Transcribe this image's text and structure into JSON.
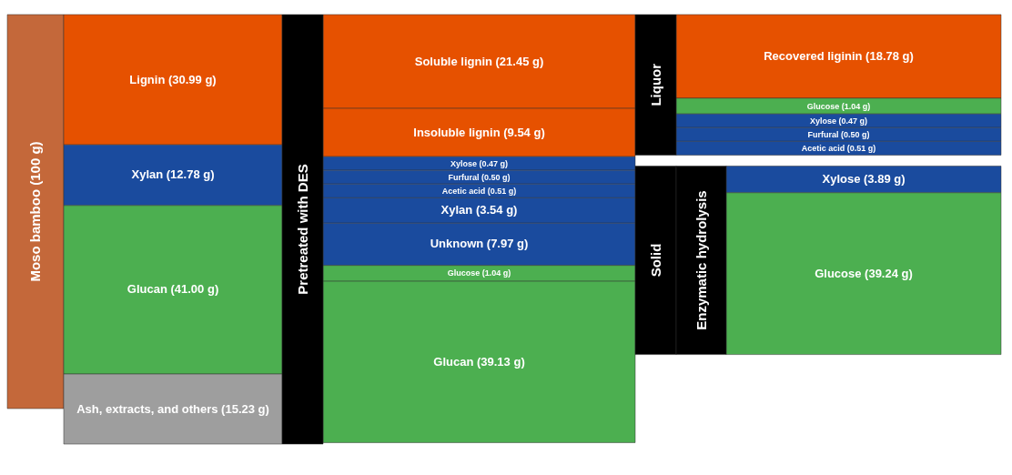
{
  "chart_data": {
    "type": "other",
    "categories": [
      "Moso bamboo",
      "Lignin",
      "Xylan",
      "Glucan",
      "Ash, extracts, and others",
      "Soluble lignin",
      "Insoluble lignin",
      "Xylose",
      "Furfural",
      "Acetic acid",
      "Xylan",
      "Unknown",
      "Glucose",
      "Glucan",
      "Recovered liginin",
      "Glucose",
      "Xylose",
      "Furfural",
      "Acetic acid",
      "Xylose",
      "Glucose"
    ],
    "series": [
      {
        "values": [
          100,
          null,
          null,
          null,
          null,
          null,
          null,
          null,
          null,
          null,
          null,
          null,
          null,
          null,
          null,
          null,
          null,
          null,
          null,
          null,
          null
        ],
        "value_labels": [
          "(100 g)",
          null,
          null,
          null,
          null,
          null,
          null,
          null,
          null,
          null,
          null,
          null,
          null,
          null,
          null,
          null,
          null,
          null,
          null,
          null,
          null
        ],
        "colors": [
          "#c4683a",
          null,
          null,
          null,
          null,
          null,
          null,
          null,
          null,
          null,
          null,
          null,
          null,
          null,
          null,
          null,
          null,
          null,
          null,
          null,
          null
        ]
      },
      {
        "values": [
          null,
          30.99,
          12.78,
          41.0,
          15.23,
          null,
          null,
          null,
          null,
          null,
          null,
          null,
          null,
          null,
          null,
          null,
          null,
          null,
          null,
          null,
          null
        ],
        "value_labels": [
          null,
          "(30.99 g)",
          "(12.78 g)",
          "(41.00 g)",
          "(15.23 g)",
          null,
          null,
          null,
          null,
          null,
          null,
          null,
          null,
          null,
          null,
          null,
          null,
          null,
          null,
          null,
          null
        ],
        "colors": [
          null,
          "#e65100",
          "#1a4b9e",
          "#4caf50",
          "#9e9e9e",
          null,
          null,
          null,
          null,
          null,
          null,
          null,
          null,
          null,
          null,
          null,
          null,
          null,
          null,
          null,
          null
        ]
      },
      {
        "values": [
          null,
          null,
          null,
          null,
          null,
          21.45,
          9.54,
          0.47,
          0.5,
          0.51,
          3.54,
          7.97,
          1.04,
          39.13,
          null,
          null,
          null,
          null,
          null,
          null,
          null
        ],
        "value_labels": [
          null,
          null,
          null,
          null,
          null,
          "(21.45 g)",
          "(9.54 g)",
          "(0.47 g)",
          "(0.50 g)",
          "(0.51 g)",
          "(3.54 g)",
          "(7.97 g)",
          "(1.04 g)",
          "(39.13 g)",
          null,
          null,
          null,
          null,
          null,
          null,
          null
        ],
        "colors": [
          null,
          null,
          null,
          null,
          null,
          "#e65100",
          "#e65100",
          "#1a4b9e",
          "#1a4b9e",
          "#1a4b9e",
          "#1a4b9e",
          "#1a4b9e",
          "#4caf50",
          "#4caf50",
          null,
          null,
          null,
          null,
          null,
          null,
          null
        ]
      },
      {
        "values": [
          null,
          null,
          null,
          null,
          null,
          null,
          null,
          null,
          null,
          null,
          null,
          null,
          null,
          null,
          18.78,
          1.04,
          0.47,
          0.5,
          0.51,
          null,
          null
        ],
        "value_labels": [
          null,
          null,
          null,
          null,
          null,
          null,
          null,
          null,
          null,
          null,
          null,
          null,
          null,
          null,
          "(18.78 g)",
          "(1.04 g)",
          "(0.47 g)",
          "(0.50 g)",
          "(0.51 g)",
          null,
          null
        ],
        "colors": [
          null,
          null,
          null,
          null,
          null,
          null,
          null,
          null,
          null,
          null,
          null,
          null,
          null,
          null,
          "#e65100",
          "#4caf50",
          "#1a4b9e",
          "#1a4b9e",
          "#1a4b9e",
          null,
          null
        ]
      },
      {
        "values": [
          null,
          null,
          null,
          null,
          null,
          null,
          null,
          null,
          null,
          null,
          null,
          null,
          null,
          null,
          null,
          null,
          null,
          null,
          null,
          3.89,
          39.24
        ],
        "value_labels": [
          null,
          null,
          null,
          null,
          null,
          null,
          null,
          null,
          null,
          null,
          null,
          null,
          null,
          null,
          null,
          null,
          null,
          null,
          null,
          "(3.89 g)",
          "(39.24 g)"
        ],
        "colors": [
          null,
          null,
          null,
          null,
          null,
          null,
          null,
          null,
          null,
          null,
          null,
          null,
          null,
          null,
          null,
          null,
          null,
          null,
          null,
          "#1a4b9e",
          "#4caf50"
        ]
      }
    ],
    "annotations": [
      "Pretreated with DES",
      "Liquor",
      "Solid",
      "Enzymatic hydrolysis"
    ]
  }
}
